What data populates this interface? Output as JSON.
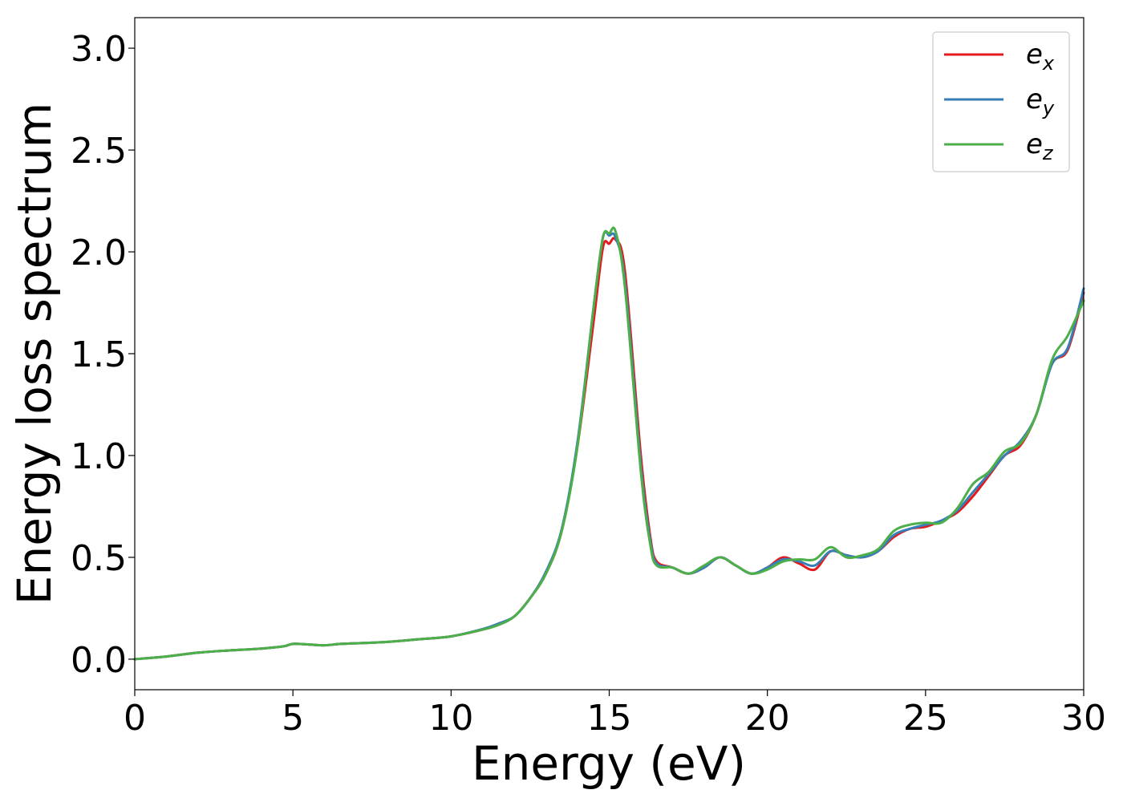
{
  "chart_data": {
    "type": "line",
    "xlabel": "Energy (eV)",
    "ylabel": "Energy loss spectrum",
    "xlim": [
      0,
      30
    ],
    "ylim": [
      -0.15,
      3.15
    ],
    "xticks": [
      0,
      5,
      10,
      15,
      20,
      25,
      30
    ],
    "xtick_labels": [
      "0",
      "5",
      "10",
      "15",
      "20",
      "25",
      "30"
    ],
    "yticks": [
      0.0,
      0.5,
      1.0,
      1.5,
      2.0,
      2.5,
      3.0
    ],
    "ytick_labels": [
      "0.0",
      "0.5",
      "1.0",
      "1.5",
      "2.0",
      "2.5",
      "3.0"
    ],
    "grid": false,
    "legend_position": "top-right",
    "series": [
      {
        "name": "e_x",
        "base": "e",
        "sub": "x",
        "color": "#e41a1c",
        "x": [
          0,
          1,
          2,
          3,
          4,
          4.7,
          5,
          5.5,
          6,
          6.5,
          7,
          8,
          9,
          10,
          11,
          11.5,
          12,
          12.5,
          13,
          13.5,
          14,
          14.5,
          14.8,
          15,
          15.2,
          15.5,
          16,
          16.3,
          16.5,
          17,
          17.5,
          18,
          18.5,
          19,
          19.5,
          20,
          20.5,
          21,
          21.5,
          22,
          22.5,
          23,
          23.5,
          24,
          24.5,
          25,
          25.5,
          26,
          26.5,
          27,
          27.5,
          28,
          28.5,
          29,
          29.5,
          30
        ],
        "y": [
          0.0,
          0.013,
          0.032,
          0.043,
          0.052,
          0.063,
          0.075,
          0.072,
          0.068,
          0.075,
          0.078,
          0.085,
          0.098,
          0.112,
          0.145,
          0.17,
          0.21,
          0.3,
          0.42,
          0.63,
          1.05,
          1.65,
          2.02,
          2.04,
          2.06,
          1.9,
          1.0,
          0.6,
          0.48,
          0.45,
          0.42,
          0.45,
          0.5,
          0.46,
          0.42,
          0.45,
          0.5,
          0.47,
          0.44,
          0.53,
          0.51,
          0.5,
          0.53,
          0.6,
          0.64,
          0.65,
          0.68,
          0.72,
          0.8,
          0.9,
          1.0,
          1.05,
          1.2,
          1.45,
          1.52,
          1.8
        ]
      },
      {
        "name": "e_y",
        "base": "e",
        "sub": "y",
        "color": "#377eb8",
        "x": [
          0,
          1,
          2,
          3,
          4,
          4.7,
          5,
          5.5,
          6,
          6.5,
          7,
          8,
          9,
          10,
          11,
          11.5,
          12,
          12.5,
          13,
          13.5,
          14,
          14.5,
          14.8,
          15,
          15.2,
          15.5,
          16,
          16.3,
          16.5,
          17,
          17.5,
          18,
          18.5,
          19,
          19.5,
          20,
          20.5,
          21,
          21.5,
          22,
          22.5,
          23,
          23.5,
          24,
          24.5,
          25,
          25.5,
          26,
          26.5,
          27,
          27.5,
          28,
          28.5,
          29,
          29.5,
          30
        ],
        "y": [
          0.0,
          0.013,
          0.032,
          0.043,
          0.052,
          0.063,
          0.075,
          0.072,
          0.068,
          0.075,
          0.078,
          0.085,
          0.098,
          0.112,
          0.148,
          0.175,
          0.21,
          0.3,
          0.43,
          0.64,
          1.07,
          1.72,
          2.07,
          2.08,
          2.07,
          1.85,
          0.95,
          0.58,
          0.47,
          0.45,
          0.42,
          0.45,
          0.5,
          0.46,
          0.42,
          0.45,
          0.49,
          0.48,
          0.46,
          0.53,
          0.51,
          0.5,
          0.53,
          0.61,
          0.64,
          0.66,
          0.68,
          0.73,
          0.82,
          0.91,
          1.0,
          1.07,
          1.2,
          1.45,
          1.53,
          1.82
        ]
      },
      {
        "name": "e_z",
        "base": "e",
        "sub": "z",
        "color": "#4daf4a",
        "x": [
          0,
          1,
          2,
          3,
          4,
          4.7,
          5,
          5.5,
          6,
          6.5,
          7,
          8,
          9,
          10,
          11,
          11.5,
          12,
          12.5,
          13,
          13.5,
          14,
          14.5,
          14.8,
          15,
          15.2,
          15.5,
          16,
          16.3,
          16.5,
          17,
          17.5,
          18,
          18.5,
          19,
          19.5,
          20,
          20.5,
          21,
          21.5,
          22,
          22.5,
          23,
          23.5,
          24,
          24.5,
          25,
          25.5,
          26,
          26.5,
          27,
          27.5,
          28,
          28.5,
          29,
          29.5,
          30
        ],
        "y": [
          0.0,
          0.013,
          0.032,
          0.043,
          0.052,
          0.063,
          0.075,
          0.072,
          0.068,
          0.075,
          0.078,
          0.085,
          0.098,
          0.112,
          0.145,
          0.168,
          0.21,
          0.3,
          0.42,
          0.63,
          1.05,
          1.72,
          2.07,
          2.09,
          2.1,
          1.82,
          0.92,
          0.56,
          0.46,
          0.45,
          0.42,
          0.46,
          0.5,
          0.46,
          0.42,
          0.44,
          0.48,
          0.49,
          0.49,
          0.55,
          0.5,
          0.51,
          0.54,
          0.63,
          0.66,
          0.67,
          0.67,
          0.74,
          0.86,
          0.92,
          1.02,
          1.06,
          1.2,
          1.47,
          1.59,
          1.76
        ]
      }
    ]
  }
}
